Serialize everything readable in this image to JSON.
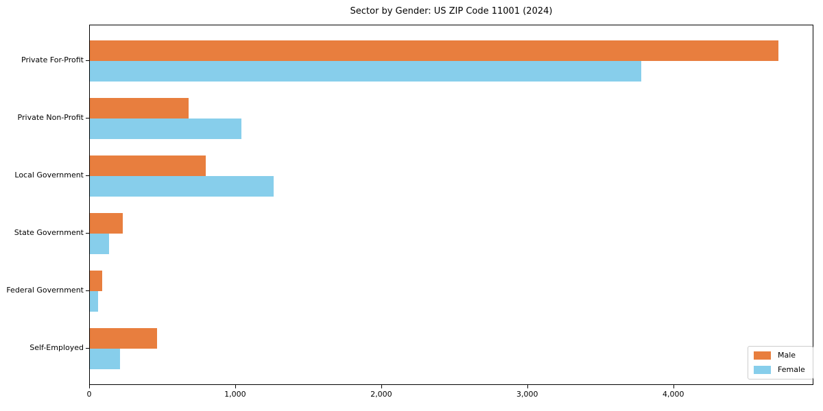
{
  "chart_data": {
    "type": "bar",
    "orientation": "horizontal",
    "title": "Sector by Gender: US ZIP Code 11001 (2024)",
    "xlabel": "",
    "ylabel": "",
    "categories": [
      "Private For-Profit",
      "Private Non-Profit",
      "Local Government",
      "State Government",
      "Federal Government",
      "Self-Employed"
    ],
    "series": [
      {
        "name": "Male",
        "color": "#e87e3e",
        "values": [
          4715,
          675,
          795,
          225,
          85,
          460
        ]
      },
      {
        "name": "Female",
        "color": "#87ceeb",
        "values": [
          3775,
          1040,
          1260,
          130,
          55,
          205
        ]
      }
    ],
    "xlim": [
      0,
      4950
    ],
    "xticks": [
      0,
      1000,
      2000,
      3000,
      4000
    ],
    "xtick_labels": [
      "0",
      "1,000",
      "2,000",
      "3,000",
      "4,000"
    ],
    "legend_position": "lower right",
    "grid": false,
    "colors": {
      "spine": "#000000",
      "legend_border": "#cccccc",
      "background": "#ffffff"
    }
  }
}
